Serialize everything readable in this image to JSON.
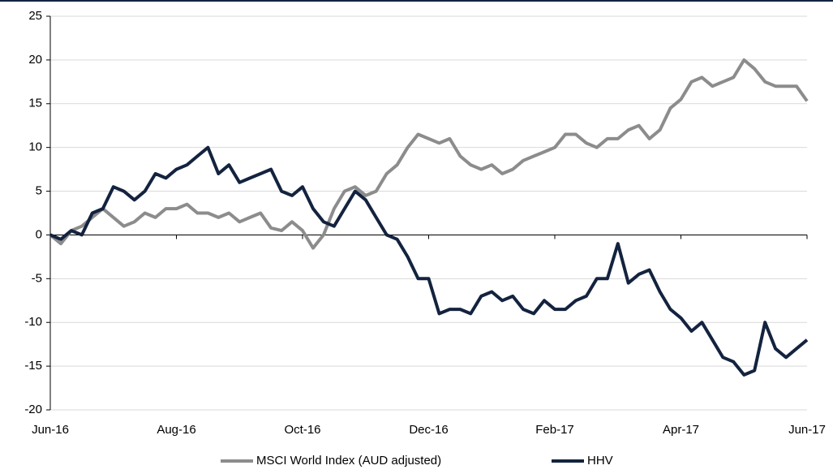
{
  "chart_data": {
    "type": "line",
    "categories": [
      "Jun-16",
      null,
      null,
      null,
      null,
      null,
      null,
      null,
      null,
      null,
      null,
      null,
      "Aug-16",
      null,
      null,
      null,
      null,
      null,
      null,
      null,
      null,
      null,
      null,
      null,
      "Oct-16",
      null,
      null,
      null,
      null,
      null,
      null,
      null,
      null,
      null,
      null,
      null,
      "Dec-16",
      null,
      null,
      null,
      null,
      null,
      null,
      null,
      null,
      null,
      null,
      null,
      "Feb-17",
      null,
      null,
      null,
      null,
      null,
      null,
      null,
      null,
      null,
      null,
      null,
      "Apr-17",
      null,
      null,
      null,
      null,
      null,
      null,
      null,
      null,
      null,
      null,
      null,
      "Jun-17"
    ],
    "series": [
      {
        "name": "MSCI World Index (AUD adjusted)",
        "color": "#8c8c8c",
        "values": [
          0,
          -1,
          0.5,
          1,
          2,
          3,
          2,
          1,
          1.5,
          2.5,
          2,
          3,
          3,
          3.5,
          2.5,
          2.5,
          2,
          2.5,
          1.5,
          2,
          2.5,
          0.8,
          0.5,
          1.5,
          0.5,
          -1.5,
          0,
          3,
          5,
          5.5,
          4.5,
          5,
          7,
          8,
          10,
          11.5,
          11,
          10.5,
          11,
          9,
          8,
          7.5,
          8,
          7,
          7.5,
          8.5,
          9,
          9.5,
          10,
          11.5,
          11.5,
          10.5,
          10,
          11,
          11,
          12,
          12.5,
          11,
          12,
          14.5,
          15.5,
          17.5,
          18,
          17,
          17.5,
          18,
          20,
          19,
          17.5,
          17,
          17,
          17,
          15.3
        ]
      },
      {
        "name": "HHV",
        "color": "#13233f",
        "values": [
          0,
          -0.5,
          0.5,
          0,
          2.5,
          3,
          5.5,
          5,
          4,
          5,
          7,
          6.5,
          7.5,
          8,
          9,
          10,
          7,
          8,
          6,
          6.5,
          7,
          7.5,
          5,
          4.5,
          5.5,
          3,
          1.5,
          1,
          3,
          5,
          4,
          2,
          0,
          -0.5,
          -2.5,
          -5,
          -5,
          -9,
          -8.5,
          -8.5,
          -9,
          -7,
          -6.5,
          -7.5,
          -7,
          -8.5,
          -9,
          -7.5,
          -8.5,
          -8.5,
          -7.5,
          -7,
          -5,
          -5,
          -1,
          -5.5,
          -4.5,
          -4,
          -6.5,
          -8.5,
          -9.5,
          -11,
          -10,
          -12,
          -14,
          -14.5,
          -16,
          -15.5,
          -10,
          -13,
          -14,
          -13,
          -12
        ]
      }
    ],
    "ylim": [
      -20,
      25
    ],
    "yticks": [
      -20,
      -15,
      -10,
      -5,
      0,
      5,
      10,
      15,
      20,
      25
    ],
    "grid": true
  }
}
